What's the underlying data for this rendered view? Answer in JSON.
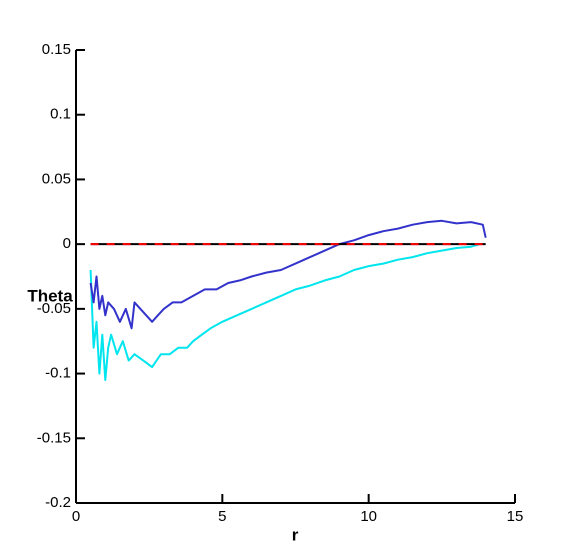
{
  "chart_data": {
    "type": "line",
    "x_label": "r",
    "y_label": "Theta",
    "xlim": [
      0,
      15
    ],
    "xticks": [
      0,
      5,
      10,
      15
    ],
    "ylim": [
      -0.2,
      0.15
    ],
    "yticks": [
      -0.2,
      -0.15,
      -0.1,
      -0.05,
      0,
      0.05,
      0.1,
      0.15
    ],
    "grid": false,
    "series": [
      {
        "color": "#00e5ee",
        "dashed": false,
        "x": [
          0.5,
          0.6,
          0.7,
          0.8,
          0.9,
          1.0,
          1.1,
          1.2,
          1.4,
          1.6,
          1.8,
          2.0,
          2.3,
          2.6,
          2.9,
          3.2,
          3.5,
          3.8,
          4.0,
          4.3,
          4.6,
          5.0,
          5.5,
          6.0,
          6.5,
          7.0,
          7.5,
          8.0,
          8.5,
          9.0,
          9.5,
          10.0,
          10.5,
          11.0,
          11.5,
          12.0,
          12.5,
          13.0,
          13.5,
          13.8
        ],
        "values": [
          -0.02,
          -0.08,
          -0.06,
          -0.1,
          -0.07,
          -0.105,
          -0.08,
          -0.07,
          -0.085,
          -0.075,
          -0.09,
          -0.085,
          -0.09,
          -0.095,
          -0.085,
          -0.085,
          -0.08,
          -0.08,
          -0.075,
          -0.07,
          -0.065,
          -0.06,
          -0.055,
          -0.05,
          -0.045,
          -0.04,
          -0.035,
          -0.032,
          -0.028,
          -0.025,
          -0.02,
          -0.017,
          -0.015,
          -0.012,
          -0.01,
          -0.007,
          -0.005,
          -0.003,
          -0.002,
          0
        ]
      },
      {
        "color": "#3333cc",
        "dashed": false,
        "x": [
          0.5,
          0.6,
          0.7,
          0.8,
          0.9,
          1.0,
          1.1,
          1.3,
          1.5,
          1.7,
          1.9,
          2.0,
          2.2,
          2.4,
          2.6,
          2.8,
          3.0,
          3.3,
          3.6,
          4.0,
          4.4,
          4.8,
          5.2,
          5.6,
          6.0,
          6.5,
          7.0,
          7.5,
          8.0,
          8.5,
          9.0,
          9.5,
          10.0,
          10.5,
          11.0,
          11.5,
          12.0,
          12.5,
          13.0,
          13.5,
          13.9,
          14.0
        ],
        "values": [
          -0.03,
          -0.045,
          -0.025,
          -0.05,
          -0.04,
          -0.055,
          -0.045,
          -0.05,
          -0.06,
          -0.05,
          -0.065,
          -0.045,
          -0.05,
          -0.055,
          -0.06,
          -0.055,
          -0.05,
          -0.045,
          -0.045,
          -0.04,
          -0.035,
          -0.035,
          -0.03,
          -0.028,
          -0.025,
          -0.022,
          -0.02,
          -0.015,
          -0.01,
          -0.005,
          0,
          0.003,
          0.007,
          0.01,
          0.012,
          0.015,
          0.017,
          0.018,
          0.016,
          0.017,
          0.015,
          0.005
        ]
      },
      {
        "color": "#000000",
        "dashed": false,
        "x": [
          0.5,
          14
        ],
        "values": [
          0,
          0
        ]
      },
      {
        "color": "#ff0000",
        "dashed": true,
        "x": [
          0.5,
          14
        ],
        "values": [
          0,
          0
        ]
      }
    ]
  }
}
